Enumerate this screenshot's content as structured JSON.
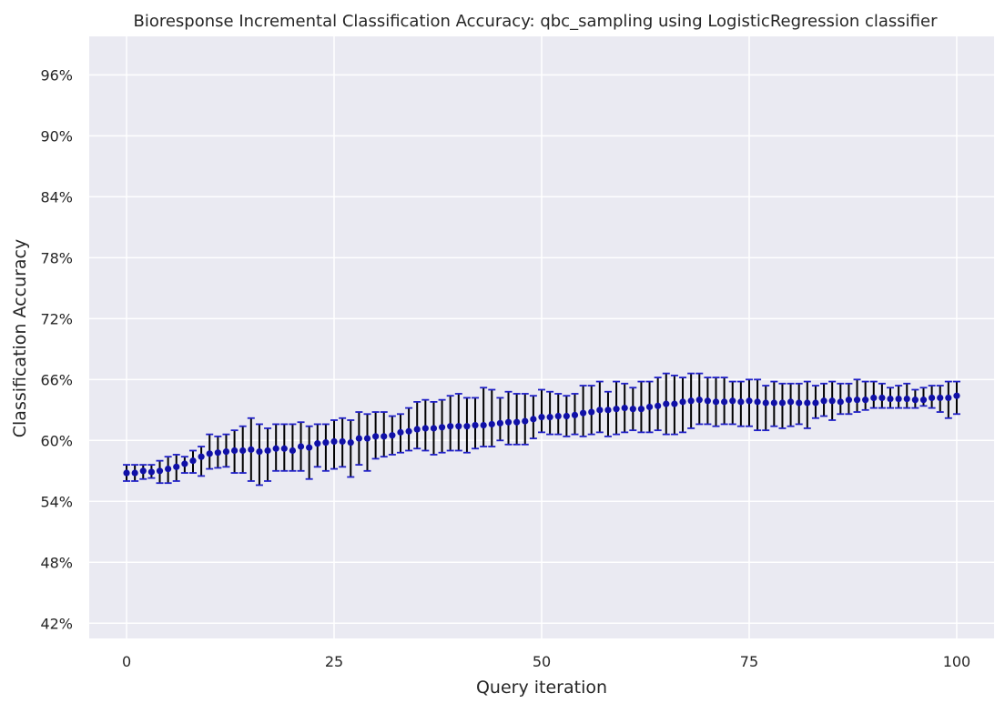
{
  "chart_data": {
    "type": "scatter",
    "title": "Bioresponse Incremental Classification Accuracy: qbc_sampling using LogisticRegression classifier",
    "xlabel": "Query iteration",
    "ylabel": "Classification Accuracy",
    "xlim": [
      -4.5,
      104.5
    ],
    "ylim": [
      40.5,
      99.8
    ],
    "x_ticks": [
      0,
      25,
      50,
      75,
      100
    ],
    "x_tick_labels": [
      "0",
      "25",
      "50",
      "75",
      "100"
    ],
    "y_ticks": [
      42,
      48,
      54,
      60,
      66,
      72,
      78,
      84,
      90,
      96
    ],
    "y_tick_labels": [
      "42%",
      "48%",
      "54%",
      "60%",
      "66%",
      "72%",
      "78%",
      "84%",
      "90%",
      "96%"
    ],
    "grid": true,
    "colors": {
      "background": "#eaeaf2",
      "grid": "#ffffff",
      "marker": "#1010a8",
      "cap": "#2020c8",
      "errorbar": "#000000"
    },
    "series": [
      {
        "x": [
          0,
          1,
          2,
          3,
          4,
          5,
          6,
          7,
          8,
          9,
          10,
          11,
          12,
          13,
          14,
          15,
          16,
          17,
          18,
          19,
          20,
          21,
          22,
          23,
          24,
          25,
          26,
          27,
          28,
          29,
          30,
          31,
          32,
          33,
          34,
          35,
          36,
          37,
          38,
          39,
          40,
          41,
          42,
          43,
          44,
          45,
          46,
          47,
          48,
          49,
          50,
          51,
          52,
          53,
          54,
          55,
          56,
          57,
          58,
          59,
          60,
          61,
          62,
          63,
          64,
          65,
          66,
          67,
          68,
          69,
          70,
          71,
          72,
          73,
          74,
          75,
          76,
          77,
          78,
          79,
          80,
          81,
          82,
          83,
          84,
          85,
          86,
          87,
          88,
          89,
          90,
          91,
          92,
          93,
          94,
          95,
          96,
          97,
          98,
          99,
          100
        ],
        "y": [
          56.8,
          56.8,
          57.0,
          56.9,
          57.0,
          57.2,
          57.4,
          57.7,
          58.0,
          58.4,
          58.7,
          58.8,
          58.9,
          59.0,
          59.0,
          59.1,
          58.9,
          59.0,
          59.2,
          59.2,
          59.0,
          59.4,
          59.3,
          59.7,
          59.8,
          59.9,
          59.9,
          59.8,
          60.2,
          60.2,
          60.4,
          60.4,
          60.5,
          60.8,
          60.9,
          61.1,
          61.2,
          61.2,
          61.3,
          61.4,
          61.4,
          61.4,
          61.5,
          61.5,
          61.6,
          61.7,
          61.8,
          61.8,
          61.9,
          62.1,
          62.3,
          62.3,
          62.4,
          62.4,
          62.5,
          62.7,
          62.8,
          63.0,
          63.0,
          63.1,
          63.2,
          63.1,
          63.1,
          63.3,
          63.4,
          63.6,
          63.6,
          63.8,
          63.9,
          64.0,
          63.9,
          63.8,
          63.8,
          63.9,
          63.8,
          63.9,
          63.8,
          63.7,
          63.7,
          63.7,
          63.8,
          63.7,
          63.7,
          63.7,
          63.9,
          63.9,
          63.8,
          64.0,
          64.0,
          64.0,
          64.2,
          64.2,
          64.1,
          64.1,
          64.1,
          64.0,
          64.0,
          64.2,
          64.2,
          64.2,
          64.4
        ],
        "yerr_low": [
          56.0,
          56.0,
          56.2,
          56.3,
          55.8,
          55.8,
          56.0,
          56.8,
          56.8,
          56.5,
          57.2,
          57.3,
          57.4,
          56.8,
          56.8,
          56.0,
          55.6,
          56.0,
          57.0,
          57.0,
          57.0,
          57.0,
          56.2,
          57.4,
          57.0,
          57.2,
          57.4,
          56.4,
          57.6,
          57.0,
          58.2,
          58.4,
          58.6,
          58.8,
          59.0,
          59.2,
          59.0,
          58.6,
          58.8,
          59.0,
          59.0,
          58.8,
          59.2,
          59.4,
          59.4,
          60.0,
          59.6,
          59.6,
          59.6,
          60.2,
          60.8,
          60.6,
          60.6,
          60.4,
          60.6,
          60.4,
          60.6,
          60.8,
          60.4,
          60.6,
          60.8,
          61.0,
          60.8,
          60.8,
          61.0,
          60.6,
          60.6,
          60.8,
          61.2,
          61.6,
          61.6,
          61.4,
          61.6,
          61.6,
          61.4,
          61.4,
          61.0,
          61.0,
          61.4,
          61.2,
          61.4,
          61.6,
          61.2,
          62.2,
          62.4,
          62.0,
          62.6,
          62.6,
          62.8,
          63.0,
          63.2,
          63.2,
          63.2,
          63.2,
          63.2,
          63.2,
          63.4,
          63.2,
          62.8,
          62.2,
          62.6
        ],
        "yerr_high": [
          57.6,
          57.6,
          57.6,
          57.6,
          58.0,
          58.4,
          58.6,
          58.4,
          59.0,
          59.4,
          60.6,
          60.4,
          60.6,
          61.0,
          61.4,
          62.2,
          61.6,
          61.2,
          61.6,
          61.6,
          61.6,
          61.8,
          61.4,
          61.6,
          61.6,
          62.0,
          62.2,
          62.0,
          62.8,
          62.6,
          62.8,
          62.8,
          62.4,
          62.6,
          63.2,
          63.8,
          64.0,
          63.8,
          64.0,
          64.4,
          64.6,
          64.2,
          64.2,
          65.2,
          65.0,
          64.2,
          64.8,
          64.6,
          64.6,
          64.4,
          65.0,
          64.8,
          64.6,
          64.4,
          64.6,
          65.4,
          65.4,
          65.8,
          64.8,
          65.8,
          65.6,
          65.2,
          65.8,
          65.8,
          66.2,
          66.6,
          66.4,
          66.2,
          66.6,
          66.6,
          66.2,
          66.2,
          66.2,
          65.8,
          65.8,
          66.0,
          66.0,
          65.4,
          65.8,
          65.6,
          65.6,
          65.6,
          65.8,
          65.4,
          65.6,
          65.8,
          65.6,
          65.6,
          66.0,
          65.8,
          65.8,
          65.6,
          65.2,
          65.4,
          65.6,
          65.0,
          65.2,
          65.4,
          65.4,
          65.8,
          65.8
        ]
      }
    ]
  }
}
